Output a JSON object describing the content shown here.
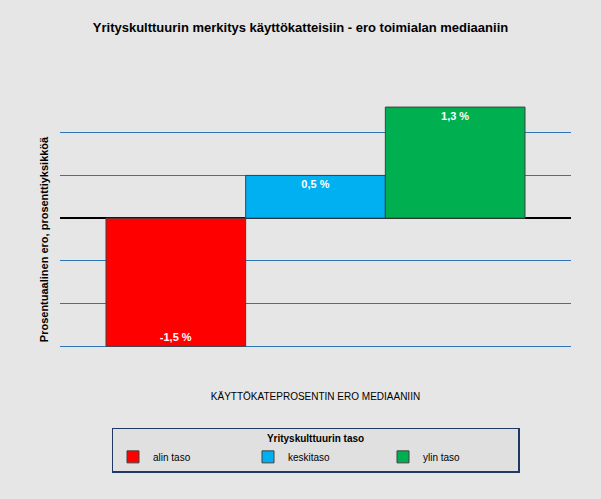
{
  "chart_data": {
    "type": "bar",
    "title": "Yrityskulttuurin merkitys käyttökatteisiin - ero toimialan mediaaniin",
    "y_label": "Prosentuaalinen ero, prosenttiyksikköä",
    "categories": [
      "KÄYTTÖKATEPROSENTIN ERO MEDIAANIIN"
    ],
    "legend_title": "Yrityskulttuurin taso",
    "series": [
      {
        "name": "alin taso",
        "color": "#ff0000",
        "values": [
          -1.5
        ],
        "value_labels": [
          "-1,5 %"
        ]
      },
      {
        "name": "keskitaso",
        "color": "#00b0f0",
        "values": [
          0.5
        ],
        "value_labels": [
          "0,5 %"
        ]
      },
      {
        "name": "ylin taso",
        "color": "#00b050",
        "values": [
          1.3
        ],
        "value_labels": [
          "1,3 %"
        ]
      }
    ],
    "ylim": [
      -2,
      1.5
    ],
    "yticks": [
      -2,
      -1.5,
      -1,
      -0.5,
      0,
      0.5,
      1,
      1.5
    ],
    "grid": true,
    "data_labels": true,
    "tick_labels": "x",
    "legend": "bottom"
  }
}
